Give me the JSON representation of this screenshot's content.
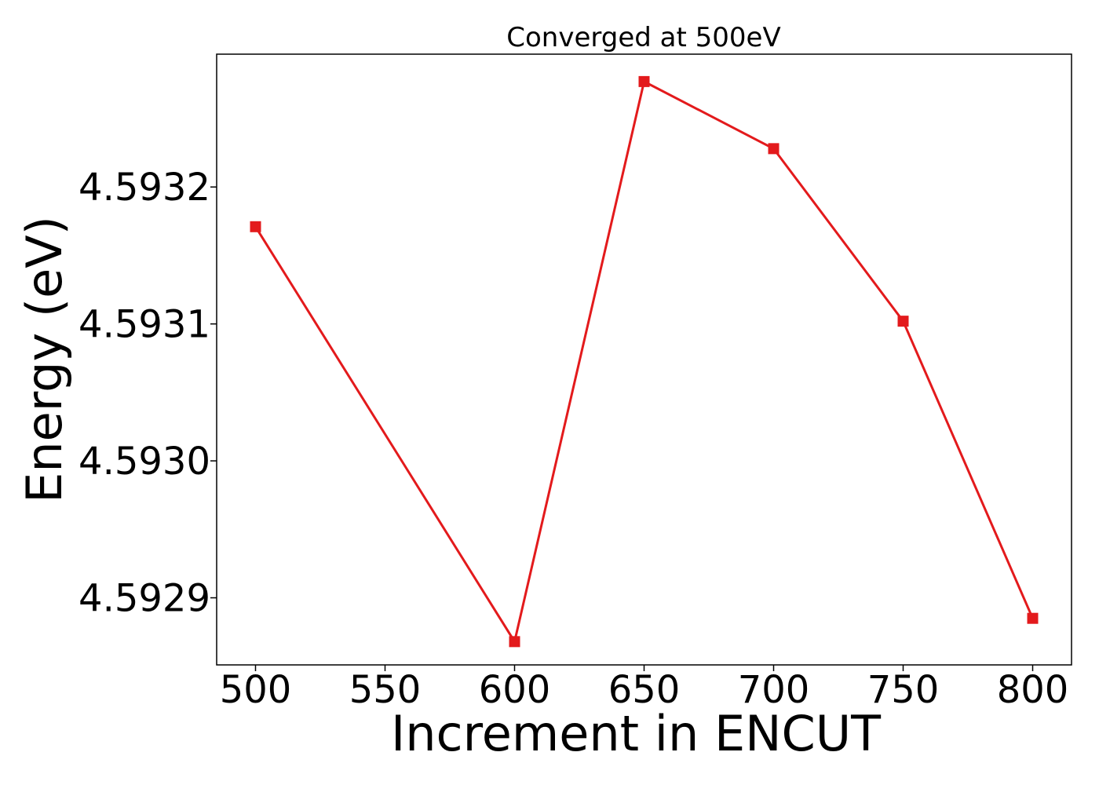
{
  "chart_data": {
    "type": "line",
    "title": "Converged at 500eV",
    "xlabel": "Increment in ENCUT",
    "ylabel": "Energy (eV)",
    "x": [
      500,
      600,
      650,
      700,
      750,
      800
    ],
    "series": [
      {
        "values": [
          4.593171,
          4.592868,
          4.593277,
          4.593228,
          4.593102,
          4.592885
        ],
        "color": "#e31a1c",
        "marker": "square"
      }
    ],
    "xticks": [
      500,
      550,
      600,
      650,
      700,
      750,
      800
    ],
    "xtick_labels": [
      "500",
      "550",
      "600",
      "650",
      "700",
      "750",
      "800"
    ],
    "yticks": [
      4.5929,
      4.593,
      4.5931,
      4.5932
    ],
    "ytick_labels": [
      "4.5929",
      "4.5930",
      "4.5931",
      "4.5932"
    ],
    "xlim": [
      485,
      815
    ],
    "ylim": [
      4.592851,
      4.593297
    ],
    "grid": false,
    "legend": false
  }
}
